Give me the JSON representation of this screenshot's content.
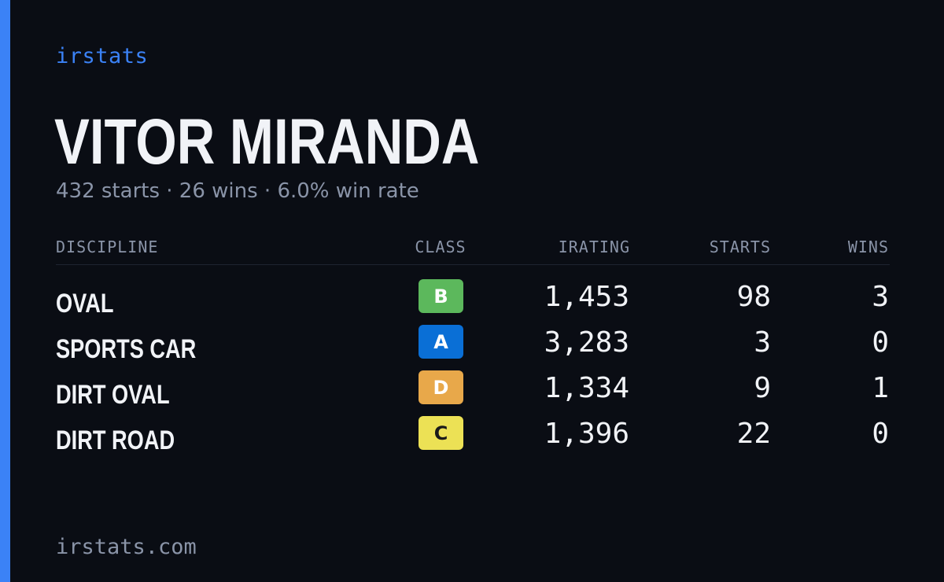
{
  "brand": "irstats",
  "driver": {
    "name": "VITOR MIRANDA",
    "summary": "432 starts · 26 wins · 6.0% win rate"
  },
  "table": {
    "headers": {
      "discipline": "DISCIPLINE",
      "class": "CLASS",
      "irating": "IRATING",
      "starts": "STARTS",
      "wins": "WINS"
    },
    "rows": [
      {
        "discipline": "OVAL",
        "class": "B",
        "class_color": "#5cb85c",
        "class_text_color": "#ffffff",
        "irating": "1,453",
        "starts": "98",
        "wins": "3"
      },
      {
        "discipline": "SPORTS CAR",
        "class": "A",
        "class_color": "#0a6fd6",
        "class_text_color": "#ffffff",
        "irating": "3,283",
        "starts": "3",
        "wins": "0"
      },
      {
        "discipline": "DIRT OVAL",
        "class": "D",
        "class_color": "#e8a84a",
        "class_text_color": "#ffffff",
        "irating": "1,334",
        "starts": "9",
        "wins": "1"
      },
      {
        "discipline": "DIRT ROAD",
        "class": "C",
        "class_color": "#ece155",
        "class_text_color": "#1a1a1a",
        "irating": "1,396",
        "starts": "22",
        "wins": "0"
      }
    ]
  },
  "footer": "irstats.com",
  "colors": {
    "accent": "#3b82f6",
    "background": "#0a0d14",
    "text_primary": "#f1f3f7",
    "text_muted": "#8a94a8"
  }
}
